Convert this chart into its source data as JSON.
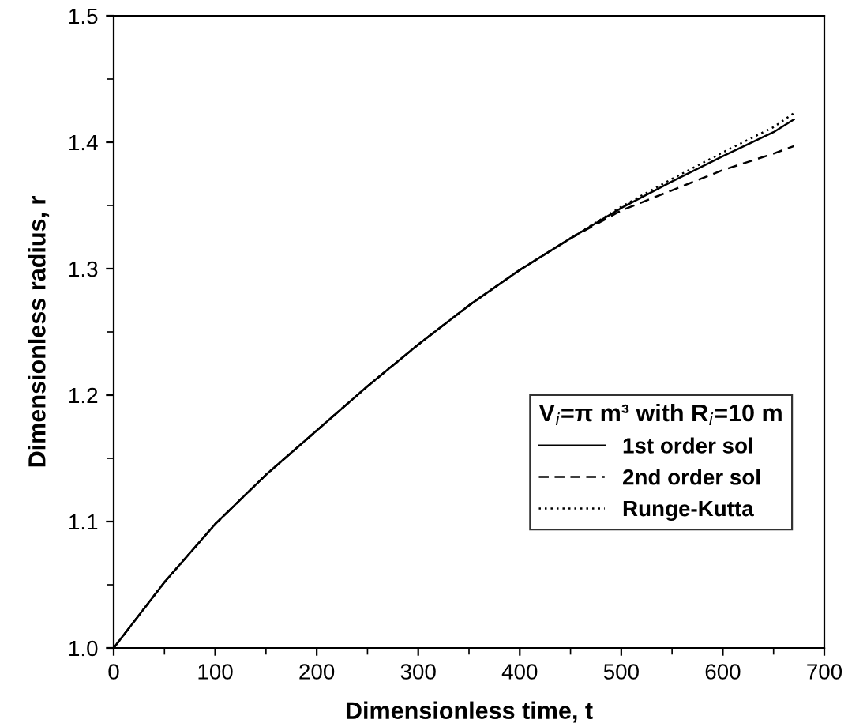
{
  "chart_data": {
    "type": "line",
    "xlabel": "Dimensionless time, t",
    "ylabel": "Dimensionless radius, r",
    "legend_title": "V$_{i}$=π m³ with R$_{i}$=10 m",
    "legend": "bottom right",
    "x": [
      0,
      50,
      100,
      150,
      200,
      250,
      300,
      350,
      400,
      450,
      500,
      550,
      600,
      650,
      670
    ],
    "series": [
      {
        "name": "1st order sol",
        "color": "#000000",
        "line_style": "solid",
        "values": [
          1.0,
          1.052,
          1.098,
          1.137,
          1.172,
          1.207,
          1.24,
          1.271,
          1.299,
          1.324,
          1.348,
          1.369,
          1.389,
          1.408,
          1.418
        ]
      },
      {
        "name": "2nd order sol",
        "color": "#000000",
        "line_style": "dashed",
        "values": [
          1.0,
          1.052,
          1.098,
          1.137,
          1.172,
          1.207,
          1.24,
          1.271,
          1.299,
          1.324,
          1.346,
          1.362,
          1.378,
          1.391,
          1.397
        ]
      },
      {
        "name": "Runge-Kutta",
        "color": "#000000",
        "line_style": "dotted",
        "values": [
          1.0,
          1.052,
          1.098,
          1.137,
          1.172,
          1.207,
          1.24,
          1.271,
          1.299,
          1.324,
          1.349,
          1.371,
          1.392,
          1.412,
          1.423
        ]
      }
    ],
    "xlim": [
      0,
      700
    ],
    "xticks": [
      0,
      100,
      200,
      300,
      400,
      500,
      600,
      700
    ],
    "ylim": [
      1.0,
      1.5
    ],
    "yticks": [
      {
        "value": 1.0,
        "label": "1.0"
      },
      {
        "value": 1.1,
        "label": "1.1"
      },
      {
        "value": 1.2,
        "label": "1.2"
      },
      {
        "value": 1.3,
        "label": "1.3"
      },
      {
        "value": 1.4,
        "label": "1.4"
      },
      {
        "value": 1.5,
        "label": "1.5"
      }
    ],
    "grid": false
  }
}
